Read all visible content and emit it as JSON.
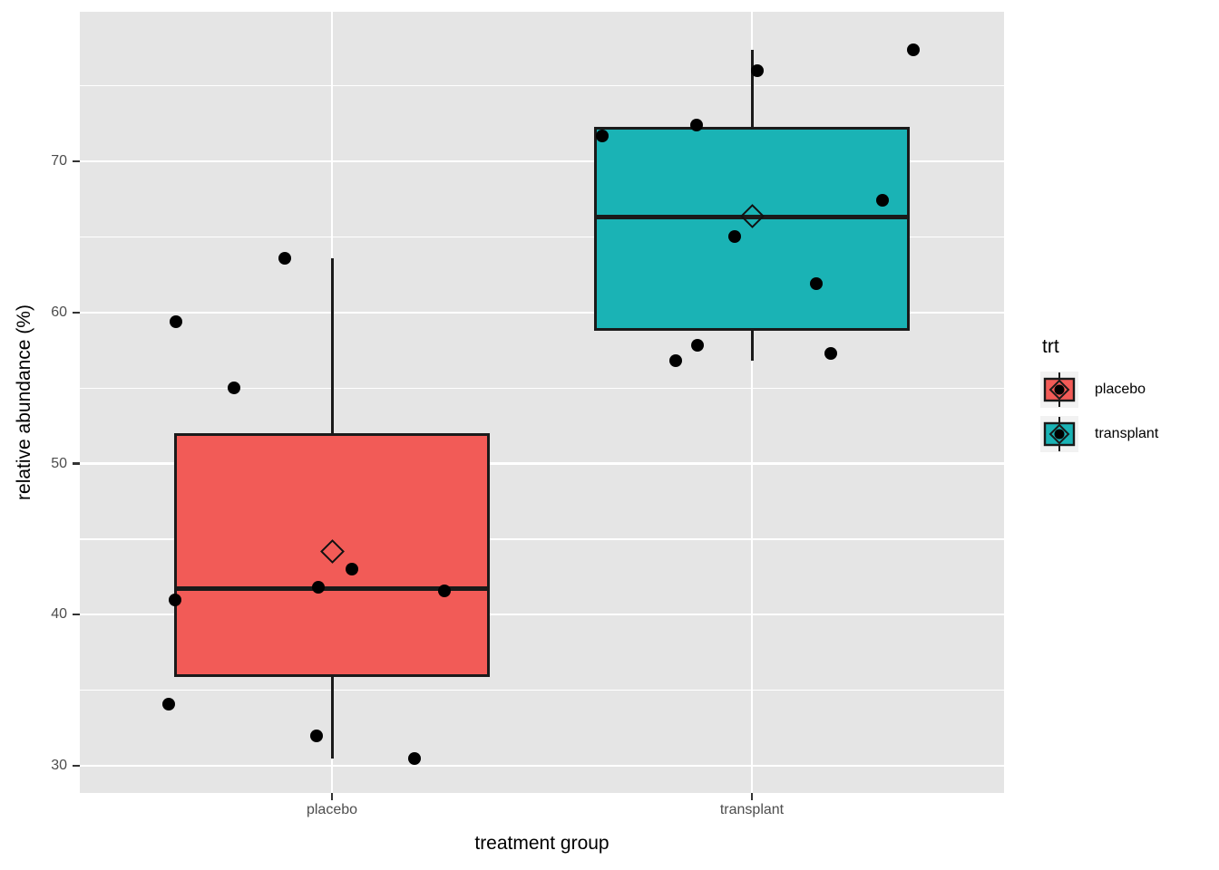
{
  "figure": {
    "xlabel": "treatment group",
    "ylabel": "relative abundance (%)"
  },
  "legend": {
    "title": "trt",
    "key_background": "#F2F2F2"
  },
  "chart_data": {
    "type": "boxplot",
    "subtype": "boxplot with jittered points and mean diamonds",
    "xlabel": "treatment group",
    "ylabel": "relative abundance (%)",
    "legend_title": "trt",
    "legend_position": "right",
    "legend_entries": [
      "placebo",
      "transplant"
    ],
    "categories": [
      "placebo",
      "transplant"
    ],
    "x_tick_labels": [
      "placebo",
      "transplant"
    ],
    "y_major_ticks": [
      30,
      40,
      50,
      60,
      70
    ],
    "y_minor_ticks": [
      35,
      45,
      55,
      65,
      75
    ],
    "ylim": [
      28.2,
      79.9
    ],
    "grid": true,
    "panel_background": "#E5E5E5",
    "grid_color": "#FFFFFF",
    "outline_color": "#1A1A1A",
    "point_color": "#000000",
    "series": [
      {
        "name": "placebo",
        "fill": "#F25B57",
        "stats": {
          "whisker_low": 30.5,
          "q1": 35.9,
          "median": 41.7,
          "q3": 52.0,
          "whisker_high": 63.6,
          "mean": 44.2
        },
        "points": [
          {
            "value": 63.6,
            "jitter": -52
          },
          {
            "value": 59.4,
            "jitter": -172
          },
          {
            "value": 55.0,
            "jitter": -108
          },
          {
            "value": 43.0,
            "jitter": 22
          },
          {
            "value": 41.8,
            "jitter": -15
          },
          {
            "value": 41.6,
            "jitter": 124
          },
          {
            "value": 41.0,
            "jitter": -173
          },
          {
            "value": 34.1,
            "jitter": -180
          },
          {
            "value": 32.0,
            "jitter": -17
          },
          {
            "value": 30.5,
            "jitter": 91
          }
        ]
      },
      {
        "name": "transplant",
        "fill": "#1AB3B5",
        "stats": {
          "whisker_low": 56.8,
          "q1": 58.8,
          "median": 66.3,
          "q3": 72.3,
          "whisker_high": 77.4,
          "mean": 66.4
        },
        "points": [
          {
            "value": 77.4,
            "jitter": 178
          },
          {
            "value": 76.0,
            "jitter": 6
          },
          {
            "value": 72.4,
            "jitter": -61
          },
          {
            "value": 71.7,
            "jitter": -165
          },
          {
            "value": 67.4,
            "jitter": 144
          },
          {
            "value": 65.0,
            "jitter": -19
          },
          {
            "value": 61.9,
            "jitter": 71
          },
          {
            "value": 57.8,
            "jitter": -60
          },
          {
            "value": 57.3,
            "jitter": 87
          },
          {
            "value": 56.8,
            "jitter": -84
          }
        ]
      }
    ]
  }
}
